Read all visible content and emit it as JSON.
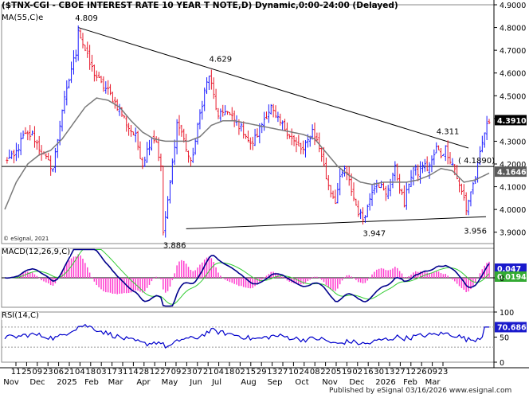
{
  "title": "($TNX-CGI - CBOE INTEREST RATE 10 YEAR T NOTE,D) Dynamic,0:00-24:00 (Delayed)",
  "ma_label": "MA(55,C)e",
  "copyright": "© eSignal, 2021",
  "macd_label": "MACD(12,26,9,C)",
  "rsi_label": "RSI(14,C)",
  "published": "Published by eSignal",
  "published_date": "03/16/2026",
  "published_site": "www.esignal.com",
  "colors": {
    "up_bar": "#1a1aff",
    "down_bar": "#e8192c",
    "ma": "#7a7a7a",
    "macd_line": "#00008b",
    "signal_line": "#33cc33",
    "histogram": "#ff3ccf",
    "rsi_line": "#0000cc",
    "price_badge": "#000000",
    "ma_badge": "#5a5a5a",
    "macd_badge": "#1a1acc",
    "signal_badge": "#33aa33",
    "rsi_badge": "#1a1acc"
  },
  "chart_data": [
    {
      "type": "ohlc",
      "name": "price",
      "ylim": [
        3.85,
        4.9
      ],
      "y_ticks": [
        "4.9000",
        "4.8000",
        "4.7000",
        "4.6000",
        "4.5000",
        "4.4000",
        "4.3000",
        "4.2000",
        "4.1000",
        "4.0000",
        "3.9000"
      ],
      "last_price": "4.3910",
      "ma_value": "4.1646",
      "level_label": "( 4.1890)",
      "level": 4.189,
      "annotations": [
        {
          "label": "4.809",
          "value": 4.809
        },
        {
          "label": "4.629",
          "value": 4.629
        },
        {
          "label": "3.886",
          "value": 3.886
        },
        {
          "label": "4.311",
          "value": 4.311
        },
        {
          "label": "3.947",
          "value": 3.947
        },
        {
          "label": "3.956",
          "value": 3.956
        }
      ],
      "close_path": [
        [
          0,
          4.22
        ],
        [
          4,
          4.23
        ],
        [
          8,
          4.32
        ],
        [
          12,
          4.33
        ],
        [
          15,
          4.27
        ],
        [
          18,
          4.22
        ],
        [
          21,
          4.18
        ],
        [
          23,
          4.31
        ],
        [
          25,
          4.44
        ],
        [
          27,
          4.52
        ],
        [
          29,
          4.62
        ],
        [
          31,
          4.69
        ],
        [
          32,
          4.8
        ],
        [
          33,
          4.76
        ],
        [
          35,
          4.7
        ],
        [
          37,
          4.64
        ],
        [
          39,
          4.6
        ],
        [
          42,
          4.55
        ],
        [
          45,
          4.52
        ],
        [
          48,
          4.47
        ],
        [
          51,
          4.42
        ],
        [
          54,
          4.36
        ],
        [
          57,
          4.32
        ],
        [
          60,
          4.2
        ],
        [
          62,
          4.26
        ],
        [
          64,
          4.32
        ],
        [
          66,
          4.3
        ],
        [
          68,
          4.18
        ],
        [
          69,
          3.9
        ],
        [
          71,
          4.03
        ],
        [
          73,
          4.2
        ],
        [
          75,
          4.38
        ],
        [
          77,
          4.34
        ],
        [
          79,
          4.27
        ],
        [
          81,
          4.2
        ],
        [
          83,
          4.3
        ],
        [
          85,
          4.42
        ],
        [
          87,
          4.52
        ],
        [
          89,
          4.59
        ],
        [
          91,
          4.5
        ],
        [
          93,
          4.4
        ],
        [
          96,
          4.44
        ],
        [
          99,
          4.4
        ],
        [
          102,
          4.37
        ],
        [
          105,
          4.33
        ],
        [
          107,
          4.28
        ],
        [
          110,
          4.33
        ],
        [
          113,
          4.4
        ],
        [
          116,
          4.45
        ],
        [
          118,
          4.4
        ],
        [
          121,
          4.37
        ],
        [
          124,
          4.33
        ],
        [
          127,
          4.28
        ],
        [
          130,
          4.26
        ],
        [
          132,
          4.3
        ],
        [
          134,
          4.35
        ],
        [
          136,
          4.3
        ],
        [
          138,
          4.24
        ],
        [
          140,
          4.14
        ],
        [
          142,
          4.08
        ],
        [
          144,
          4.04
        ],
        [
          146,
          4.13
        ],
        [
          148,
          4.18
        ],
        [
          150,
          4.12
        ],
        [
          152,
          4.05
        ],
        [
          154,
          3.99
        ],
        [
          156,
          3.96
        ],
        [
          158,
          4.01
        ],
        [
          160,
          4.09
        ],
        [
          162,
          4.12
        ],
        [
          164,
          4.1
        ],
        [
          166,
          4.06
        ],
        [
          168,
          4.13
        ],
        [
          170,
          4.18
        ],
        [
          172,
          4.1
        ],
        [
          174,
          4.02
        ],
        [
          176,
          4.12
        ],
        [
          178,
          4.18
        ],
        [
          180,
          4.16
        ],
        [
          182,
          4.2
        ],
        [
          184,
          4.18
        ],
        [
          186,
          4.21
        ],
        [
          188,
          4.27
        ],
        [
          190,
          4.24
        ],
        [
          192,
          4.27
        ],
        [
          194,
          4.22
        ],
        [
          196,
          4.18
        ],
        [
          198,
          4.1
        ],
        [
          200,
          4.05
        ],
        [
          201,
          4.0
        ],
        [
          203,
          4.08
        ],
        [
          205,
          4.14
        ],
        [
          207,
          4.24
        ],
        [
          209,
          4.34
        ],
        [
          211,
          4.39
        ]
      ],
      "ma_path": [
        [
          0,
          4.0
        ],
        [
          5,
          4.12
        ],
        [
          10,
          4.2
        ],
        [
          15,
          4.24
        ],
        [
          20,
          4.26
        ],
        [
          25,
          4.31
        ],
        [
          30,
          4.38
        ],
        [
          35,
          4.45
        ],
        [
          40,
          4.49
        ],
        [
          45,
          4.48
        ],
        [
          50,
          4.45
        ],
        [
          55,
          4.39
        ],
        [
          60,
          4.34
        ],
        [
          65,
          4.31
        ],
        [
          70,
          4.3
        ],
        [
          75,
          4.3
        ],
        [
          80,
          4.3
        ],
        [
          85,
          4.32
        ],
        [
          90,
          4.37
        ],
        [
          95,
          4.39
        ],
        [
          100,
          4.39
        ],
        [
          105,
          4.38
        ],
        [
          110,
          4.37
        ],
        [
          115,
          4.36
        ],
        [
          120,
          4.35
        ],
        [
          125,
          4.34
        ],
        [
          130,
          4.33
        ],
        [
          135,
          4.31
        ],
        [
          140,
          4.25
        ],
        [
          145,
          4.19
        ],
        [
          150,
          4.15
        ],
        [
          155,
          4.12
        ],
        [
          160,
          4.11
        ],
        [
          165,
          4.12
        ],
        [
          170,
          4.12
        ],
        [
          175,
          4.12
        ],
        [
          180,
          4.13
        ],
        [
          185,
          4.15
        ],
        [
          190,
          4.18
        ],
        [
          195,
          4.17
        ],
        [
          200,
          4.12
        ],
        [
          205,
          4.13
        ],
        [
          211,
          4.16
        ]
      ]
    },
    {
      "type": "macd",
      "name": "MACD(12,26,9,C)",
      "macd_value": "0.047",
      "signal_value": "0.0194",
      "y_ticks": [
        "0"
      ],
      "ylim": [
        -0.12,
        0.12
      ]
    },
    {
      "type": "line",
      "name": "RSI(14,C)",
      "rsi_value": "70.686",
      "ylim": [
        0,
        100
      ],
      "y_ticks": [
        "100",
        "50",
        "0"
      ],
      "y_tick_lines": [
        70,
        30
      ]
    }
  ],
  "x_axis": {
    "tick_labels": [
      "11",
      "25",
      "09",
      "23",
      "06",
      "21",
      "04",
      "18",
      "03",
      "17",
      "31",
      "14",
      "28",
      "12",
      "27",
      "09",
      "23",
      "07",
      "21",
      "04",
      "18",
      "02",
      "15",
      "29",
      "13",
      "27",
      "10",
      "24",
      "08",
      "22",
      "05",
      "19",
      "02",
      "16",
      "30",
      "13",
      "27",
      "12",
      "26",
      "09",
      "23"
    ],
    "month_labels": [
      "Nov",
      "Dec",
      "2025",
      "Feb",
      "Mar",
      "Apr",
      "May",
      "Jun",
      "Jul",
      "Aug",
      "Sep",
      "Oct",
      "Nov",
      "Dec",
      "2026",
      "Feb",
      "Mar"
    ]
  }
}
